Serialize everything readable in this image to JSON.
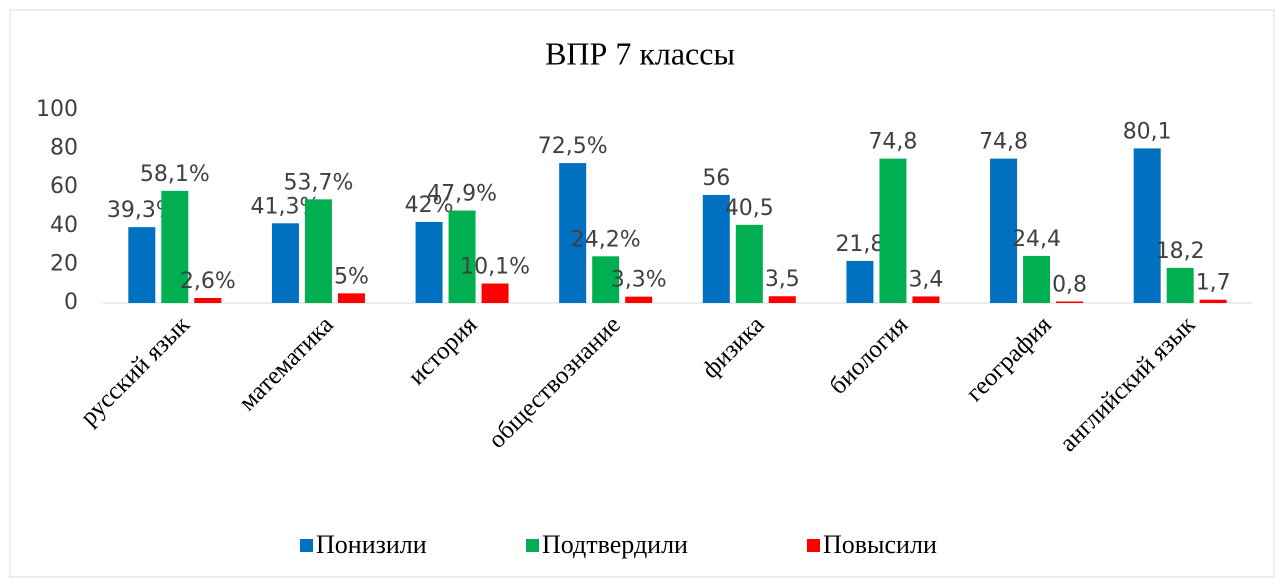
{
  "chart_data": {
    "type": "bar",
    "title": "ВПР 7 классы",
    "categories": [
      "русский язык",
      "математика",
      "история",
      "обществознание",
      "физика",
      "биология",
      "география",
      "английский язык"
    ],
    "series": [
      {
        "name": "Понизили",
        "color": "#0070c0",
        "values": [
          39.3,
          41.3,
          42,
          72.5,
          56,
          21.8,
          74.8,
          80.1
        ],
        "value_labels": [
          "39,3%",
          "41,3%",
          "42%",
          "72,5%",
          "56",
          "21,8",
          "74,8",
          "80,1"
        ]
      },
      {
        "name": "Подтвердили",
        "color": "#00b050",
        "values": [
          58.1,
          53.7,
          47.9,
          24.2,
          40.5,
          74.8,
          24.4,
          18.2
        ],
        "value_labels": [
          "58,1%",
          "53,7%",
          "47,9%",
          "24,2%",
          "40,5",
          "74,8",
          "24,4",
          "18,2"
        ]
      },
      {
        "name": "Повысили",
        "color": "#ff0000",
        "values": [
          2.6,
          5,
          10.1,
          3.3,
          3.5,
          3.4,
          0.8,
          1.7
        ],
        "value_labels": [
          "2,6%",
          "5%",
          "10,1%",
          "3,3%",
          "3,5",
          "3,4",
          "0,8",
          "1,7"
        ]
      }
    ],
    "ylim": [
      0,
      100
    ],
    "yticks": [
      0,
      20,
      40,
      60,
      80,
      100
    ],
    "grid": false,
    "legend": "bottom"
  }
}
